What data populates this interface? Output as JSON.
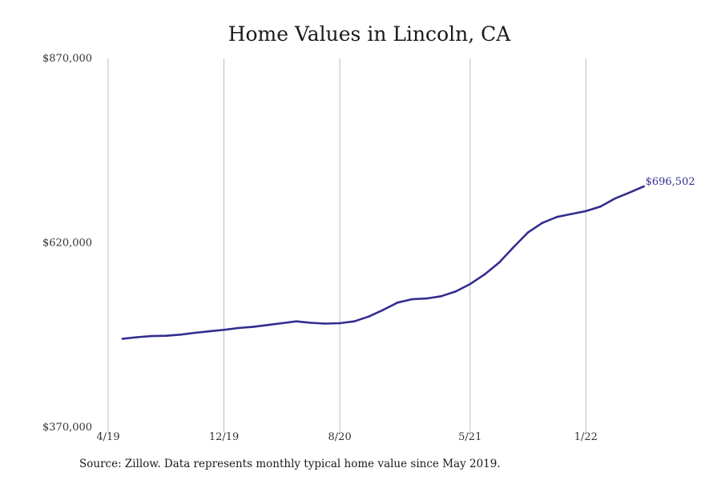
{
  "source_note": "Source: Zillow. Data represents monthly typical home value since May 2019.",
  "colors": {
    "line": "#332d8f",
    "grid": "#bdbdbd",
    "text": "#1a1a1a"
  },
  "chart_data": {
    "type": "line",
    "title": "Home Values in Lincoln, CA",
    "xlabel": "",
    "ylabel": "",
    "ylim": [
      370000,
      870000
    ],
    "y_ticks": [
      {
        "value": 870000,
        "label": "$870,000"
      },
      {
        "value": 620000,
        "label": "$620,000"
      },
      {
        "value": 370000,
        "label": "$370,000"
      }
    ],
    "x_ticks": [
      {
        "month": "2019-04",
        "label": "4/19"
      },
      {
        "month": "2019-12",
        "label": "12/19"
      },
      {
        "month": "2020-08",
        "label": "8/20"
      },
      {
        "month": "2021-05",
        "label": "5/21"
      },
      {
        "month": "2022-01",
        "label": "1/22"
      }
    ],
    "grid": "vertical",
    "legend": "none",
    "end_label": "$696,502",
    "series": [
      {
        "x": [
          "2019-05",
          "2019-06",
          "2019-07",
          "2019-08",
          "2019-09",
          "2019-10",
          "2019-11",
          "2019-12",
          "2020-01",
          "2020-02",
          "2020-03",
          "2020-04",
          "2020-05",
          "2020-06",
          "2020-07",
          "2020-08",
          "2020-09",
          "2020-10",
          "2020-11",
          "2020-12",
          "2021-01",
          "2021-02",
          "2021-03",
          "2021-04",
          "2021-05",
          "2021-06",
          "2021-07",
          "2021-08",
          "2021-09",
          "2021-10",
          "2021-11",
          "2021-12",
          "2022-01",
          "2022-02",
          "2022-03",
          "2022-04",
          "2022-05"
        ],
        "values": [
          490000,
          492000,
          493500,
          494000,
          495500,
          498000,
          500000,
          502000,
          504500,
          506000,
          508500,
          511000,
          513500,
          511500,
          510500,
          511000,
          513500,
          520000,
          529000,
          539000,
          543500,
          544500,
          547500,
          554000,
          564000,
          577000,
          593000,
          614000,
          634000,
          647000,
          655000,
          659000,
          663000,
          669000,
          680000,
          688000,
          696502
        ]
      }
    ]
  }
}
